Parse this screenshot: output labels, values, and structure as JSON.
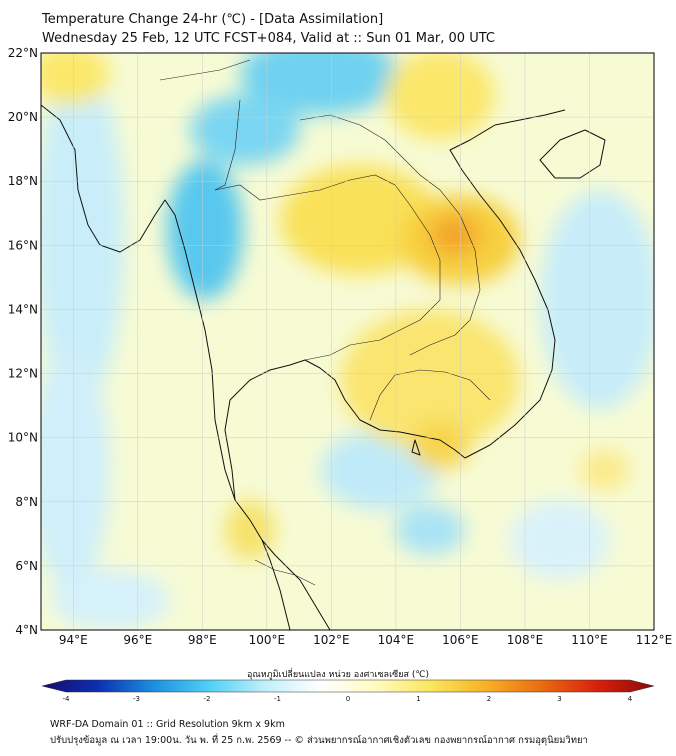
{
  "header": {
    "title": "Temperature Change 24-hr (℃) - [Data Assimilation]",
    "subtitle": "Wednesday 25 Feb, 12 UTC FCST+084, Valid at :: Sun 01 Mar, 00 UTC"
  },
  "map": {
    "lat_range": [
      4,
      22
    ],
    "lon_range": [
      93,
      112
    ],
    "lat_ticks": [
      "4°N",
      "6°N",
      "8°N",
      "10°N",
      "12°N",
      "14°N",
      "16°N",
      "18°N",
      "20°N",
      "22°N"
    ],
    "lon_ticks": [
      "94°E",
      "96°E",
      "98°E",
      "100°E",
      "102°E",
      "104°E",
      "106°E",
      "108°E",
      "110°E",
      "112°E"
    ]
  },
  "colorbar": {
    "label": "อุณหภูมิเปลี่ยนแปลง หน่วย องศาเซลเซียส (℃)",
    "ticks": [
      "-4",
      "-3",
      "-2",
      "-1",
      "0",
      "1",
      "2",
      "3",
      "4"
    ],
    "colors": [
      "#1a0a6e",
      "#0b2fb0",
      "#1b8fe0",
      "#4fd0f5",
      "#bff0fa",
      "#ffffff",
      "#fffbc0",
      "#fbe65a",
      "#f6b024",
      "#ea6a10",
      "#d91e0c",
      "#8a0a0a"
    ]
  },
  "footer": {
    "line1": "WRF-DA Domain 01 :: Grid Resolution 9km x 9km",
    "line2": "ปรับปรุงข้อมูล ณ เวลา 19:00น. วัน พ. ที่ 25 ก.พ. 2569 -- © ส่วนพยากรณ์อากาศเชิงตัวเลข กองพยากรณ์อากาศ กรมอุตุนิยมวิทยา"
  }
}
